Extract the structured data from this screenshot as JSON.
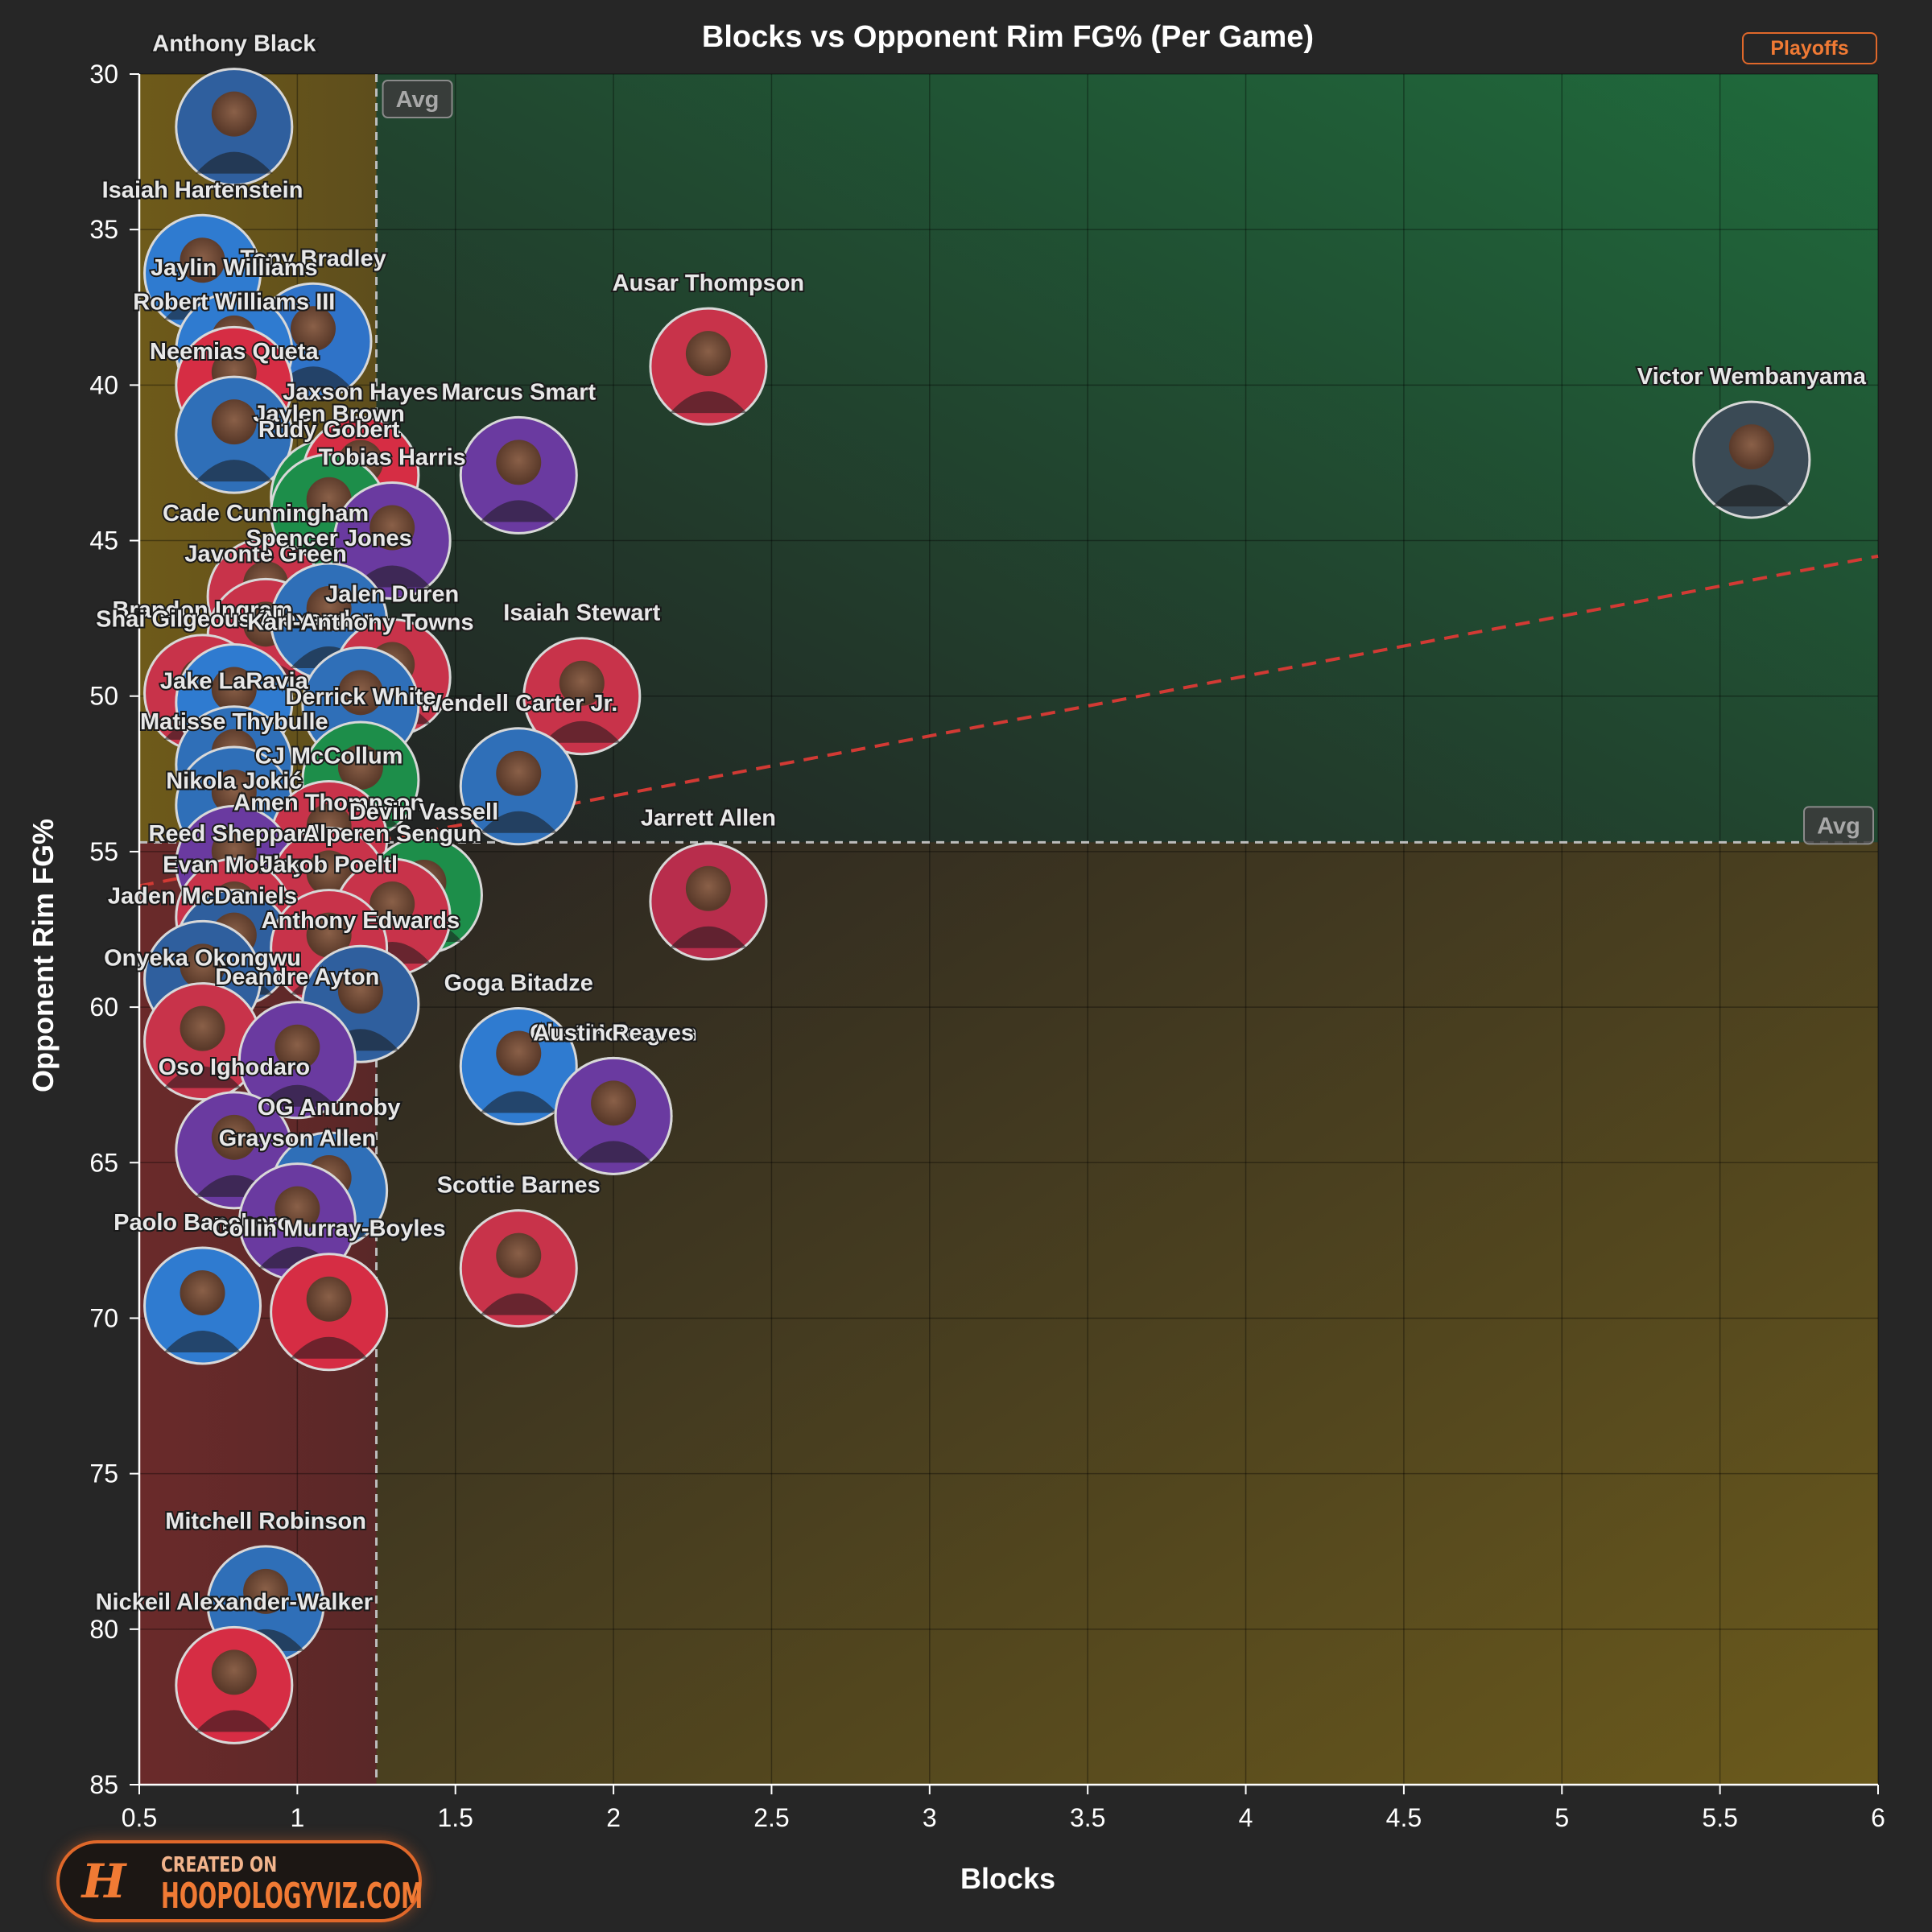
{
  "filter_badge": "Playoffs",
  "logo": {
    "line1": "CREATED ON",
    "line2": "HOOPOLOGYVIZ.COM",
    "mark": "H"
  },
  "chart_data": {
    "type": "scatter",
    "title": "Blocks vs Opponent Rim FG% (Per Game)",
    "xlabel": "Blocks",
    "ylabel": "Opponent Rim FG%",
    "xlim": [
      0.5,
      6
    ],
    "ylim": [
      30,
      85
    ],
    "y_inverted": true,
    "x_ticks": [
      "0.5",
      "1",
      "1.5",
      "2",
      "2.5",
      "3",
      "3.5",
      "4",
      "4.5",
      "5",
      "5.5",
      "6"
    ],
    "y_ticks": [
      "30",
      "35",
      "40",
      "45",
      "50",
      "55",
      "60",
      "65",
      "70",
      "75",
      "80",
      "85"
    ],
    "grid": true,
    "avg_x": 1.25,
    "avg_y": 54.7,
    "avg_label": "Avg",
    "trendline": {
      "x": [
        0.5,
        6
      ],
      "y": [
        56.1,
        45.5
      ],
      "color": "#d23a34"
    },
    "quadrant_colors": {
      "top_left": "#6e5a1a",
      "top_right": "#1f6b3c",
      "bottom_left": "#6a2a2a",
      "bottom_right": "#6b5a1c"
    },
    "points": [
      {
        "name": "Anthony Black",
        "x": 0.8,
        "y": 31.7,
        "color": "#2f5f9e"
      },
      {
        "name": "Isaiah Hartenstein",
        "x": 0.7,
        "y": 36.4,
        "color": "#2f7bd0"
      },
      {
        "name": "Tony Bradley",
        "x": 1.05,
        "y": 38.6,
        "color": "#2f73c8"
      },
      {
        "name": "Jaylin Williams",
        "x": 0.8,
        "y": 38.9,
        "color": "#2f7bd0"
      },
      {
        "name": "Robert Williams III",
        "x": 0.8,
        "y": 40.0,
        "color": "#d62d44"
      },
      {
        "name": "Neemias Queta",
        "x": 0.8,
        "y": 41.6,
        "color": "#2f6fb8"
      },
      {
        "name": "Jaylen Brown",
        "x": 1.1,
        "y": 43.6,
        "color": "#1d8e4a"
      },
      {
        "name": "Jaxson Hayes",
        "x": 1.2,
        "y": 42.9,
        "color": "#d62d44"
      },
      {
        "name": "Rudy Gobert",
        "x": 1.1,
        "y": 44.1,
        "color": "#1d8e4a"
      },
      {
        "name": "Tobias Harris",
        "x": 1.3,
        "y": 45.0,
        "color": "#6a3aa0"
      },
      {
        "name": "Cade Cunningham",
        "x": 0.9,
        "y": 46.8,
        "color": "#c8334a"
      },
      {
        "name": "Javonte Green",
        "x": 0.9,
        "y": 48.1,
        "color": "#c8334a"
      },
      {
        "name": "Spencer Jones",
        "x": 1.1,
        "y": 47.6,
        "color": "#2f6fb8"
      },
      {
        "name": "Brandon Ingram",
        "x": 0.7,
        "y": 49.9,
        "color": "#c8334a"
      },
      {
        "name": "Jalen Duren",
        "x": 1.3,
        "y": 49.4,
        "color": "#c8334a"
      },
      {
        "name": "Shai Gilgeous-Alexander",
        "x": 0.8,
        "y": 50.2,
        "color": "#2f7bd0"
      },
      {
        "name": "Karl-Anthony Towns",
        "x": 1.2,
        "y": 50.3,
        "color": "#2f6fb8"
      },
      {
        "name": "Isaiah Stewart",
        "x": 1.9,
        "y": 50.0,
        "color": "#c8334a"
      },
      {
        "name": "Jake LaRavia",
        "x": 0.8,
        "y": 52.2,
        "color": "#2f6fb8"
      },
      {
        "name": "Wendell Carter Jr.",
        "x": 1.7,
        "y": 52.9,
        "color": "#2f6fb8"
      },
      {
        "name": "Matisse Thybulle",
        "x": 0.8,
        "y": 53.5,
        "color": "#2f6fb8"
      },
      {
        "name": "Derrick White",
        "x": 1.2,
        "y": 52.7,
        "color": "#1d8e4a"
      },
      {
        "name": "CJ McCollum",
        "x": 1.1,
        "y": 54.6,
        "color": "#c8334a"
      },
      {
        "name": "Nikola Jokić",
        "x": 0.8,
        "y": 55.4,
        "color": "#6a3aa0"
      },
      {
        "name": "Amen Thompson",
        "x": 1.1,
        "y": 56.1,
        "color": "#c8334a"
      },
      {
        "name": "Devin Vassell",
        "x": 1.4,
        "y": 56.4,
        "color": "#1d8e4a"
      },
      {
        "name": "Reed Sheppard",
        "x": 0.8,
        "y": 57.1,
        "color": "#c8334a"
      },
      {
        "name": "Alperen Sengun",
        "x": 1.3,
        "y": 57.1,
        "color": "#c8334a"
      },
      {
        "name": "Marcus Smart",
        "x": 1.7,
        "y": 42.9,
        "color": "#6a3aa0"
      },
      {
        "name": "Ausar Thompson",
        "x": 2.3,
        "y": 39.4,
        "color": "#c8334a"
      },
      {
        "name": "Victor Wembanyama",
        "x": 5.6,
        "y": 42.4,
        "color": "#3a4a55"
      },
      {
        "name": "Jarrett Allen",
        "x": 2.3,
        "y": 56.6,
        "color": "#b82d4c"
      },
      {
        "name": "Evan Mobley",
        "x": 0.8,
        "y": 58.1,
        "color": "#2f5f9e"
      },
      {
        "name": "Jakob Poeltl",
        "x": 1.1,
        "y": 58.1,
        "color": "#c8334a"
      },
      {
        "name": "Jaden McDaniels",
        "x": 0.7,
        "y": 59.1,
        "color": "#2f5f9e"
      },
      {
        "name": "Anthony Edwards",
        "x": 1.2,
        "y": 59.9,
        "color": "#2f5f9e"
      },
      {
        "name": "Onyeka Okongwu",
        "x": 0.7,
        "y": 61.1,
        "color": "#c8334a"
      },
      {
        "name": "Deandre Ayton",
        "x": 1.0,
        "y": 61.7,
        "color": "#6a3aa0"
      },
      {
        "name": "Oso Ighodaro",
        "x": 0.8,
        "y": 64.6,
        "color": "#6a3aa0"
      },
      {
        "name": "Goga Bitadze",
        "x": 1.7,
        "y": 61.9,
        "color": "#2f7bd0"
      },
      {
        "name": "Chet Holmgren",
        "x": 2.0,
        "y": 63.5,
        "color": "#2f7bd0"
      },
      {
        "name": "Austin Reaves",
        "x": 2.0,
        "y": 63.5,
        "color": "#6a3aa0"
      },
      {
        "name": "OG Anunoby",
        "x": 1.1,
        "y": 65.9,
        "color": "#2f6fb8"
      },
      {
        "name": "Grayson Allen",
        "x": 1.0,
        "y": 66.9,
        "color": "#6a3aa0"
      },
      {
        "name": "Scottie Barnes",
        "x": 1.7,
        "y": 68.4,
        "color": "#c8334a"
      },
      {
        "name": "Paolo Banchero",
        "x": 0.7,
        "y": 69.6,
        "color": "#2f7bd0"
      },
      {
        "name": "Collin Murray-Boyles",
        "x": 1.1,
        "y": 69.8,
        "color": "#d62d44"
      },
      {
        "name": "Mitchell Robinson",
        "x": 0.9,
        "y": 79.2,
        "color": "#2f6fb8"
      },
      {
        "name": "Nickeil Alexander-Walker",
        "x": 0.8,
        "y": 81.8,
        "color": "#d62d44"
      }
    ]
  }
}
